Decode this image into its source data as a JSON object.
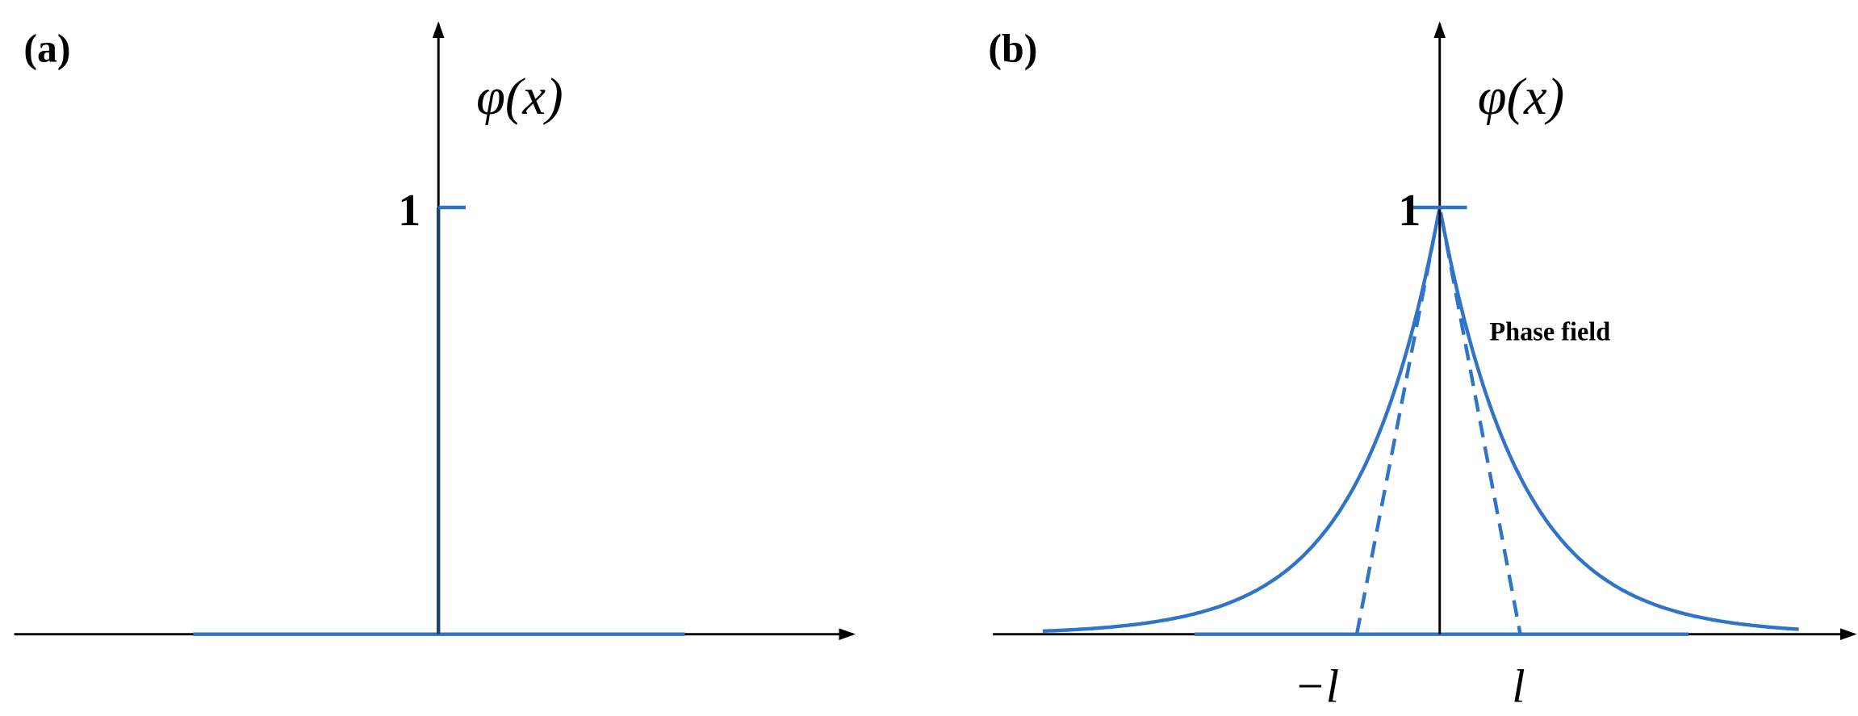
{
  "panels": [
    {
      "label": "(a)",
      "axis_label": "φ(x)",
      "tick_label": "1"
    },
    {
      "label": "(b)",
      "axis_label": "φ(x)",
      "tick_label": "1",
      "curve_label": "Phase field",
      "x_tick_labels": [
        "−l",
        "l"
      ]
    }
  ]
}
